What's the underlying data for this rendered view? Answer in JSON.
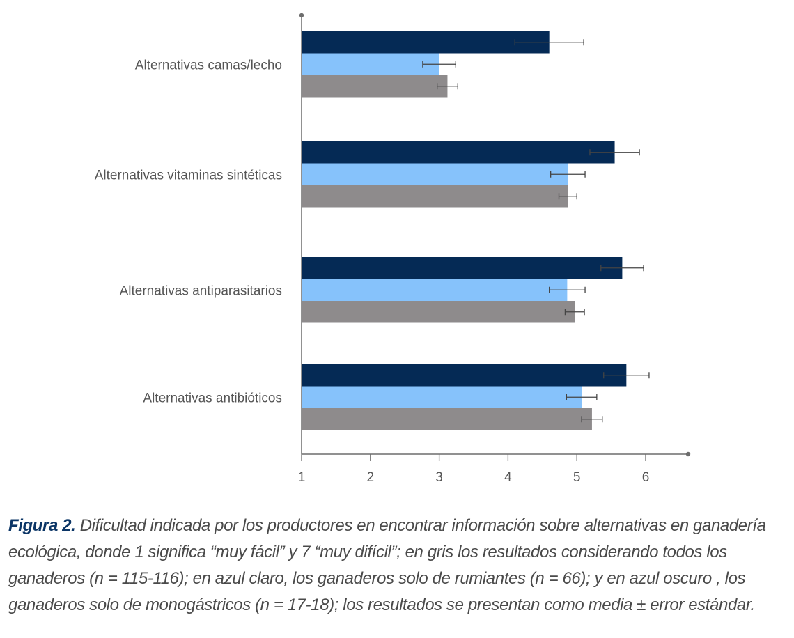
{
  "chart_data": {
    "type": "bar",
    "orientation": "horizontal",
    "categories": [
      "Alternativas camas/lecho",
      "Alternativas vitaminas sintéticas",
      "Alternativas antiparasitarios",
      "Alternativas antibióticos"
    ],
    "series": [
      {
        "color": "#052a55",
        "values": [
          4.6,
          5.55,
          5.66,
          5.72
        ],
        "errors": [
          0.5,
          0.36,
          0.31,
          0.33
        ]
      },
      {
        "color": "#86c2fb",
        "values": [
          3.0,
          4.87,
          4.86,
          5.07
        ],
        "errors": [
          0.24,
          0.25,
          0.26,
          0.22
        ]
      },
      {
        "color": "#8e8b8c",
        "values": [
          3.12,
          4.87,
          4.97,
          5.22
        ],
        "errors": [
          0.15,
          0.13,
          0.14,
          0.15
        ]
      }
    ],
    "xlim": [
      1,
      6.6
    ],
    "xticks": [
      "1",
      "2",
      "3",
      "4",
      "5",
      "6"
    ],
    "grid": false,
    "legend": "none"
  },
  "caption": {
    "label": "Figura 2.",
    "text": " Dificultad indicada por los productores en encontrar información sobre alternativas en ganadería ecológica, donde 1 significa “muy fácil” y 7 “muy difícil”; en gris los resultados considerando todos los ganaderos (n = 115-116); en azul claro, los ganaderos solo de rumiantes (n = 66); y en azul oscuro , los ganaderos solo de monogástricos (n = 17-18); los resultados se presentan como media ± error estándar."
  },
  "colors": {
    "axis": "#6d6d6d",
    "errorbar": "#444444",
    "caption_label": "#0b3566"
  }
}
